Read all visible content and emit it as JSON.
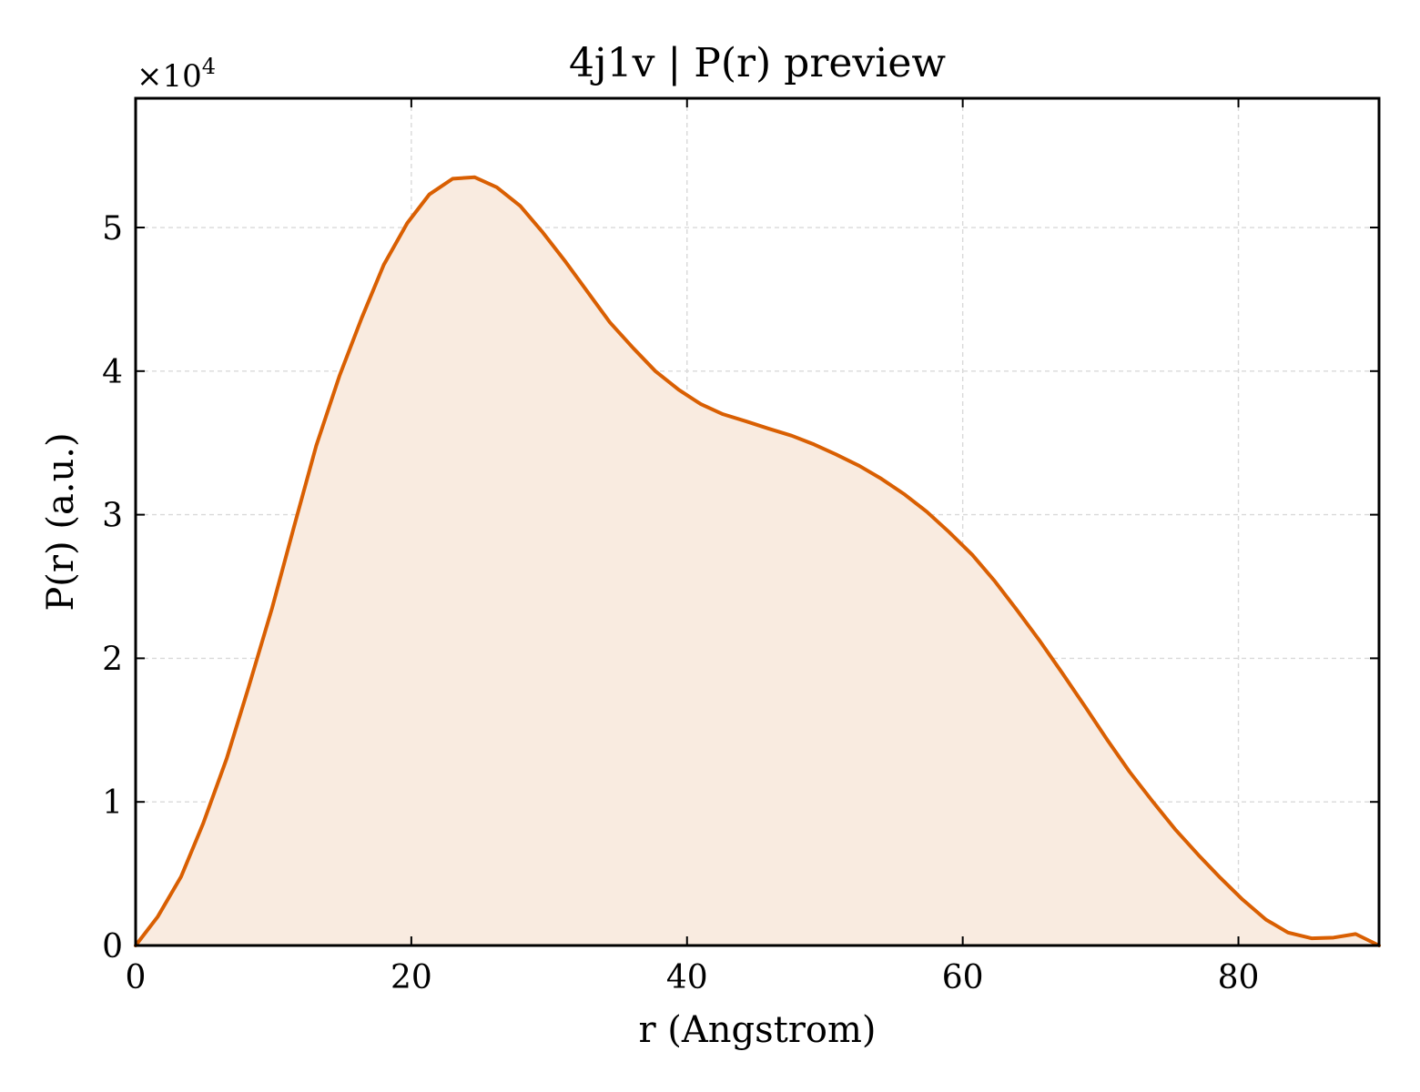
{
  "chart_data": {
    "type": "area",
    "title": "4j1v | P(r) preview",
    "xlabel": "r (Angstrom)",
    "ylabel": "P(r) (a.u.)",
    "y_multiplier_base": "×10",
    "y_multiplier_exp": "4",
    "xlim": [
      0,
      90.2
    ],
    "ylim": [
      0,
      5.9
    ],
    "x_ticks": [
      0,
      20,
      40,
      60,
      80
    ],
    "y_ticks": [
      0,
      1,
      2,
      3,
      4,
      5
    ],
    "grid": true,
    "line_color": "#d95f02",
    "fill_color": "#f9ebe0",
    "series": [
      {
        "x": [
          0,
          1.6,
          3.3,
          4.9,
          6.6,
          8.2,
          9.9,
          11.5,
          13.1,
          14.8,
          16.4,
          18.0,
          19.7,
          21.3,
          23.0,
          24.6,
          26.2,
          27.9,
          29.5,
          31.2,
          32.8,
          34.4,
          36.1,
          37.7,
          39.4,
          41.0,
          42.6,
          44.3,
          45.9,
          47.6,
          49.2,
          50.8,
          52.5,
          54.1,
          55.8,
          57.4,
          59.0,
          60.7,
          62.3,
          63.9,
          65.6,
          67.2,
          68.9,
          70.5,
          72.1,
          73.8,
          75.4,
          77.1,
          78.7,
          80.3,
          82.0,
          83.6,
          85.3,
          86.9,
          88.5,
          90.2
        ],
        "y": [
          0.0,
          0.2,
          0.48,
          0.85,
          1.3,
          1.8,
          2.35,
          2.92,
          3.48,
          3.97,
          4.37,
          4.74,
          5.03,
          5.23,
          5.34,
          5.35,
          5.28,
          5.15,
          4.97,
          4.76,
          4.55,
          4.34,
          4.16,
          4.0,
          3.87,
          3.77,
          3.7,
          3.65,
          3.6,
          3.55,
          3.49,
          3.42,
          3.34,
          3.25,
          3.14,
          3.02,
          2.88,
          2.72,
          2.54,
          2.34,
          2.12,
          1.9,
          1.66,
          1.43,
          1.21,
          1.0,
          0.81,
          0.63,
          0.47,
          0.32,
          0.18,
          0.09,
          0.05,
          0.055,
          0.08,
          0.0
        ]
      }
    ]
  }
}
